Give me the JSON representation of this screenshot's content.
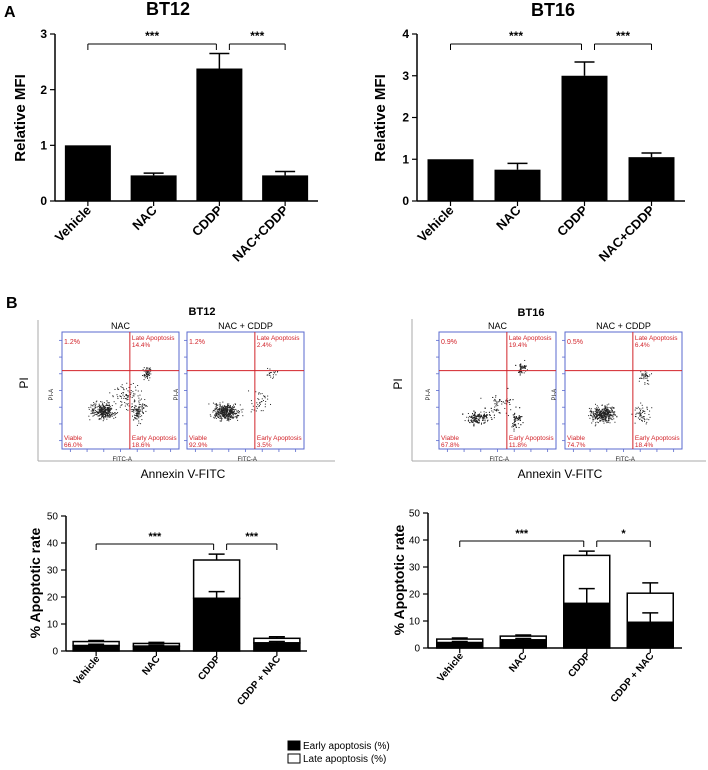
{
  "panels": {
    "a": "A",
    "b": "B"
  },
  "significance": {
    "three": "***",
    "one": "*"
  },
  "categories_a": [
    "Vehicle",
    "NAC",
    "CDDP",
    "NAC+CDDP"
  ],
  "categories_c": [
    "Vehicle",
    "NAC",
    "CDDP",
    "CDDP + NAC"
  ],
  "flow": {
    "left": {
      "title": "BT12",
      "plots": [
        {
          "title": "NAC",
          "ul": "1.2%",
          "ur_label": "Late Apoptosis",
          "ur": "14.4%",
          "ll_label": "Viable",
          "ll": "66.0%",
          "lr_label": "Early Apoptosis",
          "lr": "18.6%",
          "xaxis": "FITC-A",
          "yaxis": "PI-A"
        },
        {
          "title": "NAC + CDDP",
          "ul": "1.2%",
          "ur_label": "Late Apoptosis",
          "ur": "2.4%",
          "ll_label": "Viable",
          "ll": "92.9%",
          "lr_label": "Early Apoptosis",
          "lr": "3.5%",
          "xaxis": "FITC-A",
          "yaxis": "PI-A"
        }
      ],
      "xlabel": "Annexin V-FITC",
      "ylabel": "PI"
    },
    "right": {
      "title": "BT16",
      "plots": [
        {
          "title": "NAC",
          "ul": "0.9%",
          "ur_label": "Late Apoptosis",
          "ur": "19.4%",
          "ll_label": "Viable",
          "ll": "67.8%",
          "lr_label": "Early Apoptosis",
          "lr": "11.8%",
          "xaxis": "FITC-A",
          "yaxis": "PI-A"
        },
        {
          "title": "NAC + CDDP",
          "ul": "0.5%",
          "ur_label": "Late Apoptosis",
          "ur": "6.4%",
          "ll_label": "Viable",
          "ll": "74.7%",
          "lr_label": "Early Apoptosis",
          "lr": "18.4%",
          "xaxis": "FITC-A",
          "yaxis": "PI-A"
        }
      ],
      "xlabel": "Annexin V-FITC",
      "ylabel": "PI"
    }
  },
  "legend": {
    "early": "Early apoptosis (%)",
    "late": "Late apoptosis (%)"
  },
  "chart_data": [
    {
      "type": "bar",
      "title": "BT12",
      "ylabel": "Relative MFI",
      "ylim": [
        0,
        3
      ],
      "yticks": [
        "0",
        "1",
        "2",
        "3"
      ],
      "categories": [
        "Vehicle",
        "NAC",
        "CDDP",
        "NAC+CDDP"
      ],
      "values": [
        1.0,
        0.46,
        2.38,
        0.46
      ],
      "errors": [
        0,
        0.04,
        0.27,
        0.07
      ],
      "comparisons": [
        {
          "from": 0,
          "to": 2,
          "label": "***"
        },
        {
          "from": 2,
          "to": 3,
          "label": "***"
        }
      ]
    },
    {
      "type": "bar",
      "title": "BT16",
      "ylabel": "Relative MFI",
      "ylim": [
        0,
        4
      ],
      "yticks": [
        "0",
        "1",
        "2",
        "3",
        "4"
      ],
      "categories": [
        "Vehicle",
        "NAC",
        "CDDP",
        "NAC+CDDP"
      ],
      "values": [
        1.0,
        0.75,
        3.0,
        1.05
      ],
      "errors": [
        0,
        0.15,
        0.33,
        0.1
      ],
      "comparisons": [
        {
          "from": 0,
          "to": 2,
          "label": "***"
        },
        {
          "from": 2,
          "to": 3,
          "label": "***"
        }
      ]
    },
    {
      "type": "bar",
      "stacked": true,
      "ylabel": "% Apoptotic rate",
      "ylim": [
        0,
        50
      ],
      "yticks": [
        "0",
        "10",
        "20",
        "30",
        "40",
        "50"
      ],
      "categories": [
        "Vehicle",
        "NAC",
        "CDDP",
        "CDDP + NAC"
      ],
      "series": [
        {
          "name": "Early apoptosis (%)",
          "values": [
            2.0,
            1.8,
            19.5,
            3.0
          ],
          "errors": [
            0.5,
            0.4,
            2.5,
            0.5
          ]
        },
        {
          "name": "Late apoptosis (%)",
          "values": [
            1.5,
            1.0,
            14.2,
            1.7
          ],
          "errors": [
            0.4,
            0.4,
            2.2,
            0.6
          ]
        }
      ],
      "comparisons": [
        {
          "from": 0,
          "to": 2,
          "label": "***"
        },
        {
          "from": 2,
          "to": 3,
          "label": "***"
        }
      ]
    },
    {
      "type": "bar",
      "stacked": true,
      "ylabel": "% Apoptotic rate",
      "ylim": [
        0,
        50
      ],
      "yticks": [
        "0",
        "10",
        "20",
        "30",
        "40",
        "50"
      ],
      "categories": [
        "Vehicle",
        "NAC",
        "CDDP",
        "CDDP + NAC"
      ],
      "series": [
        {
          "name": "Early apoptosis (%)",
          "values": [
            2.0,
            3.0,
            16.5,
            9.5
          ],
          "errors": [
            0.4,
            0.5,
            5.5,
            3.5
          ]
        },
        {
          "name": "Late apoptosis (%)",
          "values": [
            1.3,
            1.4,
            17.8,
            10.8
          ],
          "errors": [
            0.4,
            0.4,
            1.6,
            3.8
          ]
        }
      ],
      "comparisons": [
        {
          "from": 0,
          "to": 2,
          "label": "***"
        },
        {
          "from": 2,
          "to": 3,
          "label": "*"
        }
      ]
    }
  ]
}
